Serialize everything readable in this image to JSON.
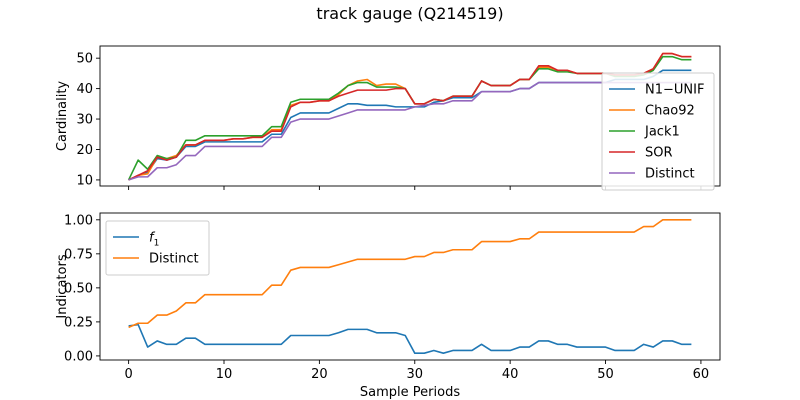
{
  "chart_data": [
    {
      "type": "line",
      "title": "track gauge (Q214519)",
      "xlabel": "",
      "ylabel": "Cardinality",
      "xlim": [
        -3,
        62
      ],
      "ylim": [
        8,
        54
      ],
      "xticks": [
        0,
        10,
        20,
        30,
        40,
        50,
        60
      ],
      "yticks": [
        10,
        20,
        30,
        40,
        50
      ],
      "grid": false,
      "legend_position": "right",
      "x": [
        0,
        1,
        2,
        3,
        4,
        5,
        6,
        7,
        8,
        9,
        10,
        11,
        12,
        13,
        14,
        15,
        16,
        17,
        18,
        19,
        20,
        21,
        22,
        23,
        24,
        25,
        26,
        27,
        28,
        29,
        30,
        31,
        32,
        33,
        34,
        35,
        36,
        37,
        38,
        39,
        40,
        41,
        42,
        43,
        44,
        45,
        46,
        47,
        48,
        49,
        50,
        51,
        52,
        53,
        54,
        55,
        56,
        57,
        58,
        59
      ],
      "series": [
        {
          "name": "N1−UNIF",
          "color": "#1f77b4",
          "values": [
            10,
            11.5,
            12.5,
            17,
            16.5,
            17.5,
            21,
            21,
            22.5,
            22.5,
            22.5,
            22.5,
            22.5,
            22.5,
            22.5,
            25,
            25,
            30.5,
            32,
            32,
            32,
            32,
            33.5,
            35,
            35,
            34.5,
            34.5,
            34.5,
            34,
            34,
            34,
            34,
            35.5,
            36,
            37,
            37,
            37,
            39,
            39,
            39,
            39,
            40,
            40,
            42,
            42,
            42,
            42,
            42,
            42,
            42,
            42,
            43,
            43,
            43,
            43,
            44,
            46,
            46,
            46,
            46
          ]
        },
        {
          "name": "Chao92",
          "color": "#ff7f0e",
          "values": [
            10,
            11.5,
            12,
            17.5,
            17,
            18,
            21.5,
            21.5,
            23,
            23,
            23,
            23.5,
            23.5,
            24,
            24,
            26.5,
            26.5,
            34.5,
            35.5,
            35.5,
            36,
            36,
            38,
            41,
            42.5,
            43,
            41,
            41.5,
            41.5,
            40,
            35,
            35,
            36.5,
            36,
            37.5,
            37.5,
            37.5,
            42.5,
            41,
            41,
            41,
            43,
            43,
            47,
            47,
            46,
            46,
            45,
            45,
            45,
            45,
            44.5,
            44.5,
            44.5,
            45,
            46.5,
            51.5,
            51.5,
            50.5,
            50.5
          ]
        },
        {
          "name": "Jack1",
          "color": "#2ca02c",
          "values": [
            10,
            16.5,
            13.5,
            18,
            17,
            17.5,
            23,
            23,
            24.5,
            24.5,
            24.5,
            24.5,
            24.5,
            24.5,
            24.5,
            27.5,
            27.5,
            35.5,
            36.5,
            36.5,
            36.5,
            36.5,
            38.5,
            41,
            42,
            42,
            40.5,
            40.5,
            40.5,
            40,
            35,
            35,
            36.5,
            36,
            37.5,
            37.5,
            37.5,
            42.5,
            41,
            41,
            41,
            43,
            43,
            46.5,
            46.5,
            45.5,
            45.5,
            45,
            45,
            45,
            45,
            44,
            44,
            44,
            44.5,
            46,
            50.5,
            50.5,
            49.5,
            49.5
          ]
        },
        {
          "name": "SOR",
          "color": "#d62728",
          "values": [
            10,
            11.5,
            13,
            17.5,
            16.5,
            17.5,
            21.5,
            21.5,
            23,
            23,
            23,
            23.5,
            23.5,
            24,
            24,
            26,
            26,
            34,
            35.5,
            35.5,
            36,
            36,
            37.5,
            38.5,
            39.5,
            39.5,
            39.5,
            39.5,
            40,
            40,
            35,
            35,
            36.5,
            36,
            37.5,
            37.5,
            37.5,
            42.5,
            41,
            41,
            41,
            43,
            43,
            47.5,
            47.5,
            46,
            46,
            45,
            45,
            45,
            45,
            44.5,
            44.5,
            44.5,
            45,
            46.5,
            51.5,
            51.5,
            50.5,
            50.5
          ]
        },
        {
          "name": "Distinct",
          "color": "#9467bd",
          "values": [
            10,
            11,
            11,
            14,
            14,
            15,
            18,
            18,
            21,
            21,
            21,
            21,
            21,
            21,
            21,
            24,
            24,
            29,
            30,
            30,
            30,
            30,
            31,
            32,
            33,
            33,
            33,
            33,
            33,
            33,
            34,
            34.5,
            35,
            35,
            36,
            36,
            36,
            39,
            39,
            39,
            39,
            40,
            40,
            42,
            42,
            42,
            42,
            42,
            42,
            42,
            42,
            42,
            42,
            42,
            42,
            42,
            42,
            42,
            42,
            42
          ]
        }
      ]
    },
    {
      "type": "line",
      "title": "",
      "xlabel": "Sample Periods",
      "ylabel": "Indicators",
      "xlim": [
        -3,
        62
      ],
      "ylim": [
        -0.03,
        1.05
      ],
      "xticks": [
        0,
        10,
        20,
        30,
        40,
        50,
        60
      ],
      "yticks": [
        0.0,
        0.25,
        0.5,
        0.75,
        1.0
      ],
      "ytick_labels": [
        "0.00",
        "0.25",
        "0.50",
        "0.75",
        "1.00"
      ],
      "grid": false,
      "legend_position": "top-left",
      "x": [
        0,
        1,
        2,
        3,
        4,
        5,
        6,
        7,
        8,
        9,
        10,
        11,
        12,
        13,
        14,
        15,
        16,
        17,
        18,
        19,
        20,
        21,
        22,
        23,
        24,
        25,
        26,
        27,
        28,
        29,
        30,
        31,
        32,
        33,
        34,
        35,
        36,
        37,
        38,
        39,
        40,
        41,
        42,
        43,
        44,
        45,
        46,
        47,
        48,
        49,
        50,
        51,
        52,
        53,
        54,
        55,
        56,
        57,
        58,
        59
      ],
      "series": [
        {
          "name": "f1",
          "legend_main": "f",
          "legend_sub": "1",
          "color": "#1f77b4",
          "values": [
            0.22,
            0.23,
            0.065,
            0.11,
            0.085,
            0.085,
            0.13,
            0.13,
            0.085,
            0.085,
            0.085,
            0.085,
            0.085,
            0.085,
            0.085,
            0.085,
            0.085,
            0.15,
            0.15,
            0.15,
            0.15,
            0.15,
            0.17,
            0.195,
            0.195,
            0.195,
            0.17,
            0.17,
            0.17,
            0.15,
            0.02,
            0.02,
            0.04,
            0.02,
            0.04,
            0.04,
            0.04,
            0.085,
            0.04,
            0.04,
            0.04,
            0.065,
            0.065,
            0.11,
            0.11,
            0.085,
            0.085,
            0.065,
            0.065,
            0.065,
            0.065,
            0.04,
            0.04,
            0.04,
            0.085,
            0.065,
            0.11,
            0.11,
            0.085,
            0.085
          ]
        },
        {
          "name": "Distinct",
          "color": "#ff7f0e",
          "values": [
            0.21,
            0.24,
            0.24,
            0.3,
            0.3,
            0.33,
            0.39,
            0.39,
            0.45,
            0.45,
            0.45,
            0.45,
            0.45,
            0.45,
            0.45,
            0.52,
            0.52,
            0.63,
            0.65,
            0.65,
            0.65,
            0.65,
            0.67,
            0.69,
            0.71,
            0.71,
            0.71,
            0.71,
            0.71,
            0.71,
            0.73,
            0.73,
            0.76,
            0.76,
            0.78,
            0.78,
            0.78,
            0.84,
            0.84,
            0.84,
            0.84,
            0.86,
            0.86,
            0.91,
            0.91,
            0.91,
            0.91,
            0.91,
            0.91,
            0.91,
            0.91,
            0.91,
            0.91,
            0.91,
            0.95,
            0.95,
            1.0,
            1.0,
            1.0,
            1.0
          ]
        }
      ]
    }
  ]
}
